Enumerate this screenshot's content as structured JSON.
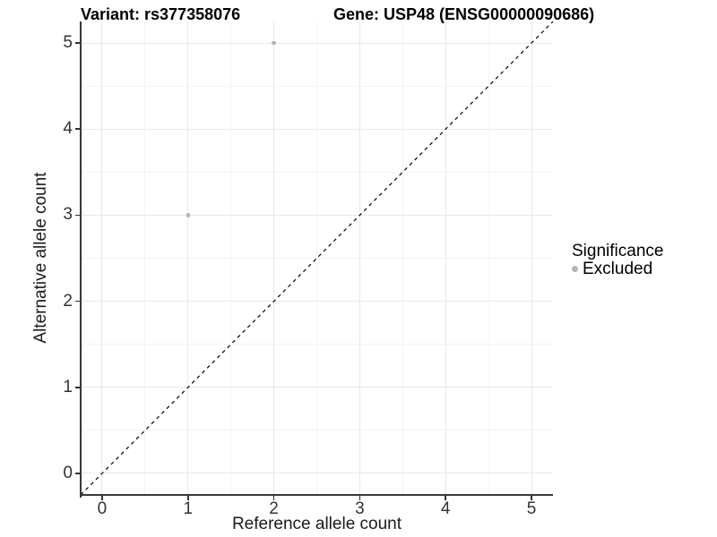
{
  "figure": {
    "title_left": "Variant: rs377358076",
    "title_right": "Gene: USP48 (ENSG00000090686)"
  },
  "chart_data": {
    "type": "scatter",
    "title": "Variant: rs377358076 | Gene: USP48 (ENSG00000090686)",
    "xlabel": "Reference allele count",
    "ylabel": "Alternative allele count",
    "xlim": [
      -0.25,
      5.25
    ],
    "ylim": [
      -0.25,
      5.25
    ],
    "x_ticks": [
      0,
      1,
      2,
      3,
      4,
      5
    ],
    "y_ticks": [
      0,
      1,
      2,
      3,
      4,
      5
    ],
    "x_minor_gridlines": [
      0.5,
      1.5,
      2.5,
      3.5,
      4.5
    ],
    "y_minor_gridlines": [
      0.5,
      1.5,
      2.5,
      3.5,
      4.5
    ],
    "grid": "on",
    "legend": {
      "title": "Significance",
      "position": "right",
      "items": [
        {
          "label": "Excluded",
          "marker_color": "#b5b5b5"
        }
      ]
    },
    "series": [
      {
        "name": "Excluded",
        "marker_color": "#b5b5b5",
        "points": [
          {
            "x": 1,
            "y": 3
          },
          {
            "x": 2,
            "y": 5
          }
        ]
      }
    ],
    "reference_line": {
      "slope": 1,
      "intercept": 0,
      "linetype": "dashed",
      "color": "#000000"
    }
  },
  "colors": {
    "background": "#ffffff",
    "grid_major": "#e8e8e8",
    "grid_minor": "#f4f4f4",
    "axis_line": "#383838",
    "tick_label": "#333333",
    "point": "#b5b5b5"
  }
}
